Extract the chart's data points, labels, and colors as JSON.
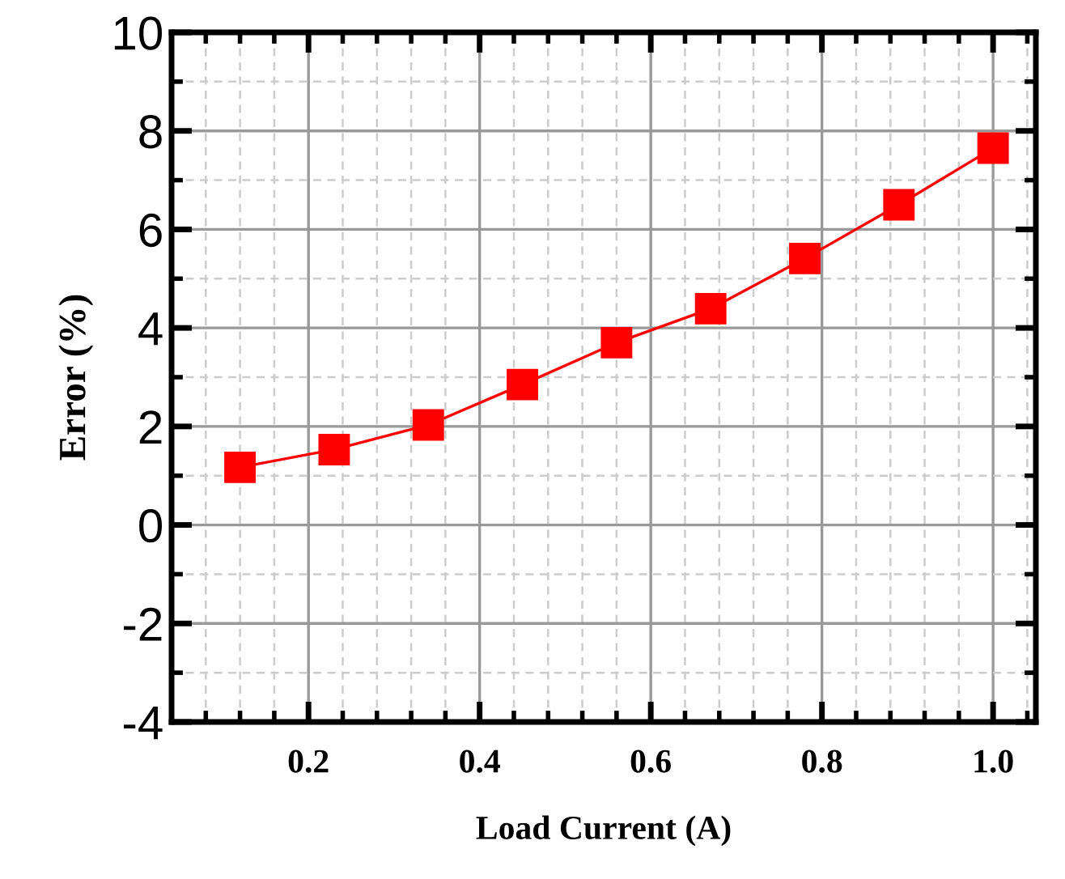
{
  "chart_data": {
    "type": "line",
    "xlabel": "Load Current (A)",
    "ylabel": "Error (%)",
    "x": [
      0.12,
      0.23,
      0.34,
      0.45,
      0.56,
      0.67,
      0.78,
      0.89,
      1.0
    ],
    "series": [
      {
        "color": "#ff0000",
        "values": [
          1.17,
          1.53,
          2.03,
          2.85,
          3.7,
          4.39,
          5.41,
          6.5,
          7.65
        ]
      }
    ],
    "xlim": [
      0.04,
      1.05
    ],
    "xticks": [
      {
        "value": 0.2,
        "label": "0.2"
      },
      {
        "value": 0.4,
        "label": "0.4"
      },
      {
        "value": 0.6,
        "label": "0.6"
      },
      {
        "value": 0.8,
        "label": "0.8"
      },
      {
        "value": 1.0,
        "label": "1.0"
      }
    ],
    "ylim": [
      -4,
      10
    ],
    "yticks": [
      -4,
      -2,
      0,
      2,
      4,
      6,
      8,
      10
    ],
    "grid": true,
    "marker": "square",
    "line_style": "solid"
  }
}
